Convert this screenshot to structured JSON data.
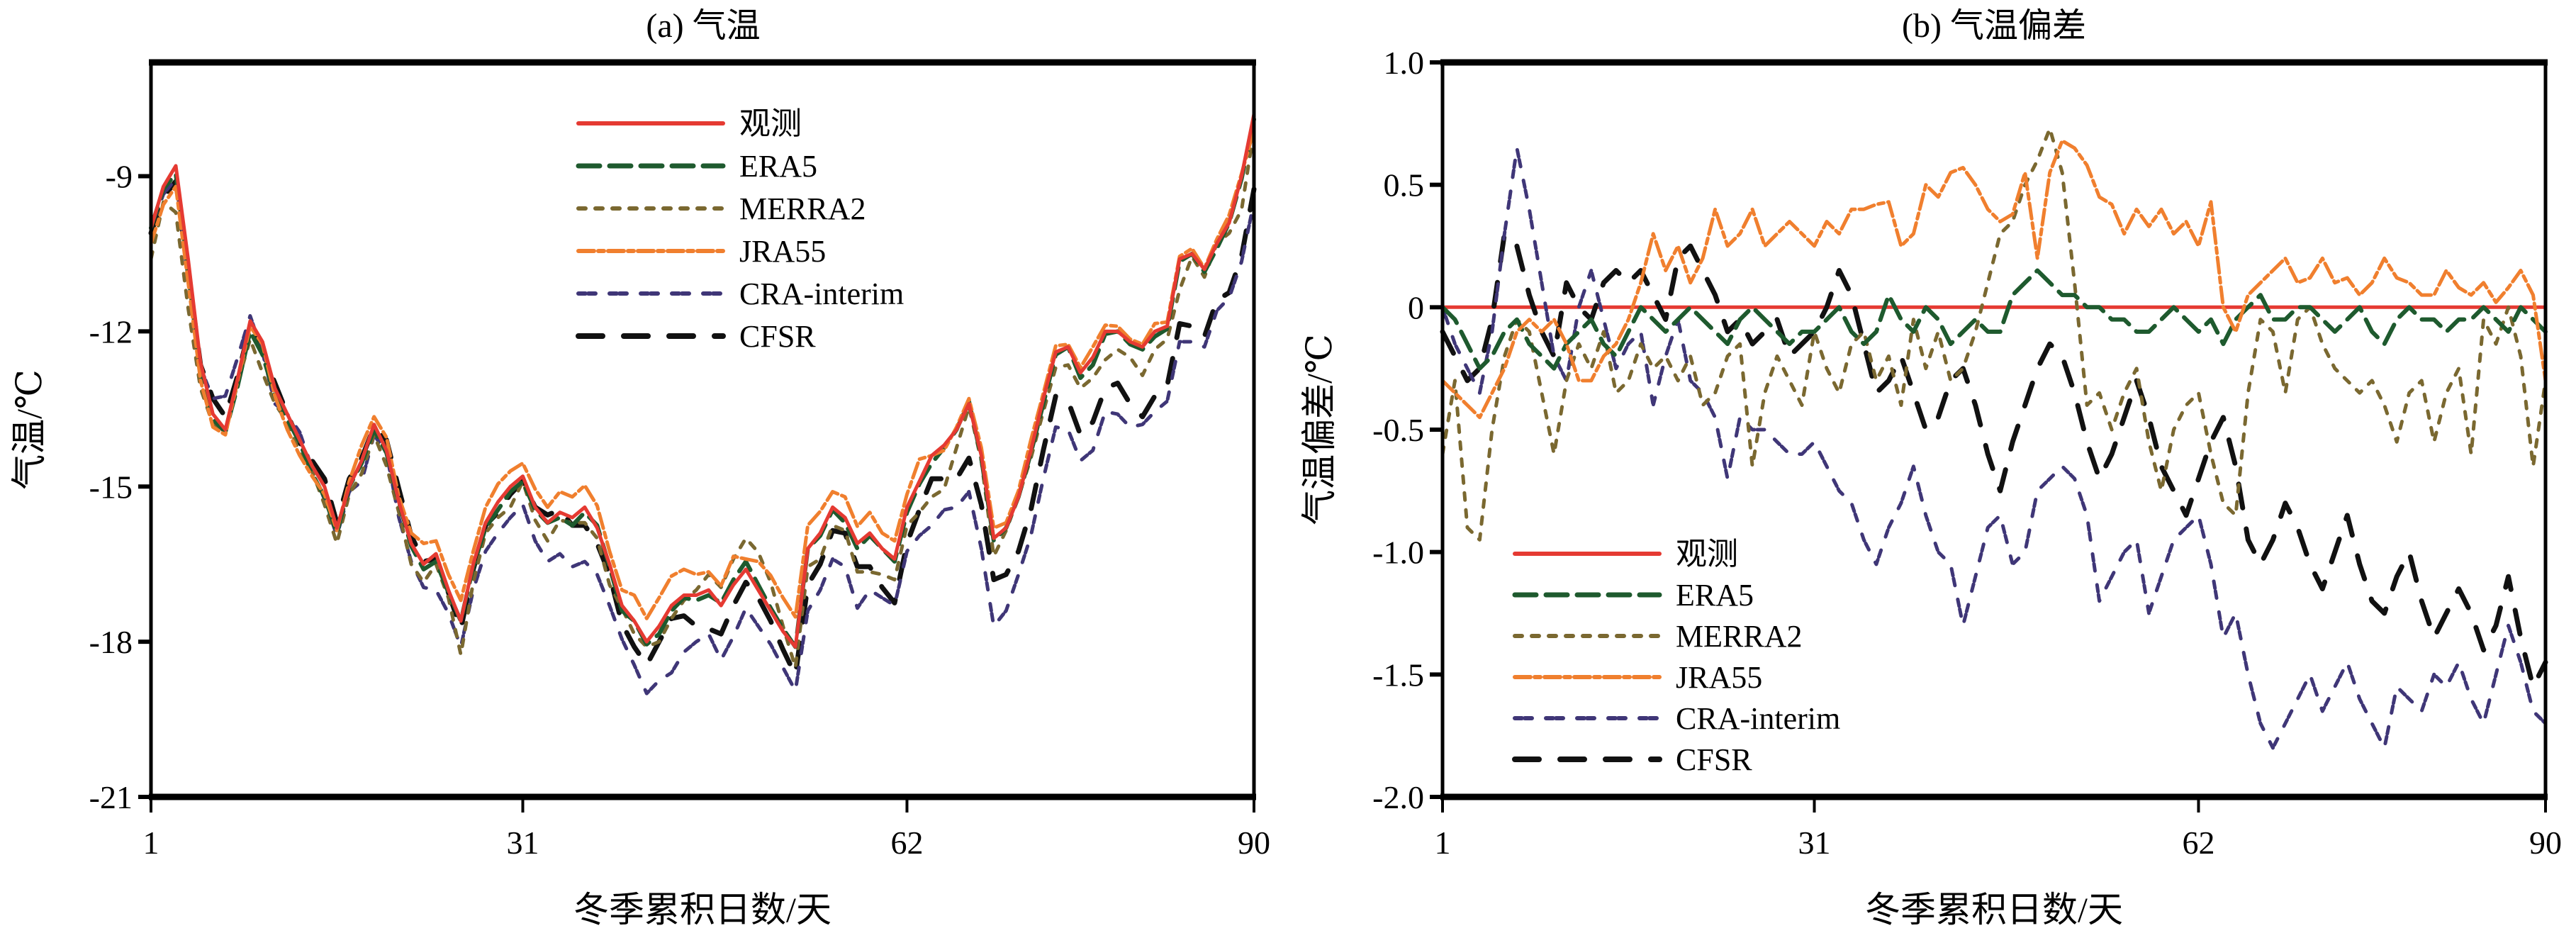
{
  "chart_data": [
    {
      "type": "line",
      "title": "(a) 气温",
      "xlabel": "冬季累积日数/天",
      "ylabel": "气温/℃",
      "xlim": [
        1,
        90
      ],
      "ylim": [
        -21,
        -6.8
      ],
      "xticks": [
        1,
        31,
        62,
        90
      ],
      "xtick_labels": [
        "1",
        "31",
        "62",
        "90"
      ],
      "yticks": [
        -21,
        -18,
        -15,
        -12,
        -9
      ],
      "ytick_labels": [
        "-21",
        "-18",
        "-15",
        "-12",
        "-9"
      ],
      "grid": false,
      "legend_position": "top-right",
      "x": "days 1-90",
      "series": [
        {
          "name": "观测",
          "color": "#e53a32",
          "dash": "solid",
          "values": [
            -10.0,
            -9.2,
            -8.8,
            -10.6,
            -12.6,
            -13.6,
            -13.9,
            -12.9,
            -11.8,
            -12.2,
            -13.1,
            -13.6,
            -14.1,
            -14.6,
            -15.0,
            -15.8,
            -15.0,
            -14.5,
            -13.8,
            -14.3,
            -15.3,
            -16.1,
            -16.5,
            -16.3,
            -17.0,
            -17.6,
            -16.5,
            -15.7,
            -15.3,
            -15.0,
            -14.8,
            -15.4,
            -15.7,
            -15.5,
            -15.6,
            -15.4,
            -15.8,
            -16.5,
            -17.3,
            -17.6,
            -18.0,
            -17.7,
            -17.3,
            -17.1,
            -17.1,
            -17.0,
            -17.3,
            -16.9,
            -16.6,
            -17.0,
            -17.4,
            -17.8,
            -18.1,
            -16.2,
            -15.9,
            -15.4,
            -15.6,
            -16.1,
            -15.9,
            -16.2,
            -16.4,
            -15.4,
            -14.9,
            -14.4,
            -14.2,
            -13.9,
            -13.4,
            -14.4,
            -16.0,
            -15.8,
            -15.2,
            -14.3,
            -13.3,
            -12.4,
            -12.3,
            -12.8,
            -12.5,
            -12.0,
            -12.0,
            -12.2,
            -12.3,
            -12.0,
            -11.9,
            -10.6,
            -10.5,
            -10.8,
            -10.3,
            -9.9,
            -9.0,
            -7.8
          ]
        },
        {
          "name": "ERA5",
          "color": "#1e5a2e",
          "dash": "long-dash"
        },
        {
          "name": "MERRA2",
          "color": "#7a6830",
          "dash": "dot"
        },
        {
          "name": "JRA55",
          "color": "#f07f2e",
          "dash": "dash-dot"
        },
        {
          "name": "CRA-interim",
          "color": "#3f3677",
          "dash": "double-dot"
        },
        {
          "name": "CFSR",
          "color": "#111111",
          "dash": "wide-dash"
        }
      ]
    },
    {
      "type": "line",
      "title": "(b) 气温偏差",
      "xlabel": "冬季累积日数/天",
      "ylabel": "气温偏差/℃",
      "xlim": [
        1,
        90
      ],
      "ylim": [
        -2.0,
        1.0
      ],
      "xticks": [
        1,
        31,
        62,
        90
      ],
      "xtick_labels": [
        "1",
        "31",
        "62",
        "90"
      ],
      "yticks": [
        -2.0,
        -1.5,
        -1.0,
        -0.5,
        0,
        0.5,
        1.0
      ],
      "ytick_labels": [
        "-2.0",
        "-1.5",
        "-1.0",
        "-0.5",
        "0",
        "0.5",
        "1.0"
      ],
      "grid": false,
      "legend_position": "bottom-left",
      "x": "days 1-90",
      "series": [
        {
          "name": "观测",
          "color": "#e53a32",
          "dash": "solid",
          "values": [
            0,
            0,
            0,
            0,
            0,
            0,
            0,
            0,
            0,
            0,
            0,
            0,
            0,
            0,
            0,
            0,
            0,
            0,
            0,
            0,
            0,
            0,
            0,
            0,
            0,
            0,
            0,
            0,
            0,
            0,
            0,
            0,
            0,
            0,
            0,
            0,
            0,
            0,
            0,
            0,
            0,
            0,
            0,
            0,
            0,
            0,
            0,
            0,
            0,
            0,
            0,
            0,
            0,
            0,
            0,
            0,
            0,
            0,
            0,
            0,
            0,
            0,
            0,
            0,
            0,
            0,
            0,
            0,
            0,
            0,
            0,
            0,
            0,
            0,
            0,
            0,
            0,
            0,
            0,
            0,
            0,
            0,
            0,
            0,
            0,
            0,
            0,
            0,
            0,
            0
          ]
        },
        {
          "name": "ERA5",
          "color": "#1e5a2e",
          "dash": "long-dash",
          "values": [
            0.0,
            -0.05,
            -0.15,
            -0.25,
            -0.2,
            -0.1,
            -0.05,
            -0.15,
            -0.2,
            -0.25,
            -0.15,
            -0.1,
            -0.05,
            -0.15,
            -0.2,
            -0.1,
            0.0,
            -0.05,
            -0.1,
            -0.05,
            0.0,
            -0.05,
            -0.1,
            -0.15,
            -0.05,
            0.0,
            -0.05,
            -0.1,
            -0.15,
            -0.1,
            -0.1,
            -0.05,
            0.0,
            -0.1,
            -0.15,
            -0.1,
            0.05,
            -0.05,
            -0.1,
            0.0,
            -0.05,
            -0.15,
            -0.1,
            -0.05,
            -0.1,
            -0.1,
            0.05,
            0.1,
            0.15,
            0.1,
            0.05,
            0.05,
            0.0,
            0.0,
            -0.05,
            -0.05,
            -0.1,
            -0.1,
            -0.05,
            0.0,
            -0.05,
            -0.1,
            -0.05,
            -0.15,
            -0.05,
            0.0,
            0.05,
            -0.05,
            -0.05,
            0.0,
            0.0,
            -0.05,
            -0.1,
            -0.05,
            0.0,
            -0.1,
            -0.15,
            -0.05,
            0.0,
            -0.05,
            -0.05,
            -0.1,
            -0.05,
            -0.05,
            0.0,
            -0.05,
            -0.1,
            0.0,
            -0.05,
            -0.1
          ]
        },
        {
          "name": "MERRA2",
          "color": "#7a6830",
          "dash": "dot",
          "values": [
            -0.6,
            -0.3,
            -0.9,
            -0.95,
            -0.5,
            -0.2,
            -0.05,
            -0.1,
            -0.35,
            -0.6,
            -0.3,
            -0.15,
            -0.25,
            -0.1,
            -0.35,
            -0.3,
            -0.15,
            -0.25,
            -0.2,
            -0.3,
            -0.2,
            -0.4,
            -0.35,
            -0.2,
            -0.15,
            -0.65,
            -0.35,
            -0.2,
            -0.3,
            -0.4,
            -0.1,
            -0.25,
            -0.35,
            -0.15,
            -0.1,
            -0.3,
            -0.2,
            -0.4,
            -0.05,
            -0.25,
            -0.1,
            -0.3,
            -0.25,
            -0.1,
            0.1,
            0.3,
            0.35,
            0.5,
            0.6,
            0.73,
            0.55,
            0.1,
            -0.4,
            -0.35,
            -0.5,
            -0.35,
            -0.25,
            -0.55,
            -0.75,
            -0.5,
            -0.4,
            -0.35,
            -0.6,
            -0.8,
            -0.85,
            -0.35,
            -0.05,
            -0.1,
            -0.35,
            -0.05,
            0.0,
            -0.15,
            -0.25,
            -0.3,
            -0.35,
            -0.3,
            -0.4,
            -0.55,
            -0.35,
            -0.3,
            -0.55,
            -0.35,
            -0.25,
            -0.6,
            -0.05,
            -0.15,
            0.0,
            -0.2,
            -0.65,
            -0.3
          ]
        },
        {
          "name": "JRA55",
          "color": "#f07f2e",
          "dash": "dash-dot",
          "values": [
            -0.3,
            -0.35,
            -0.4,
            -0.45,
            -0.35,
            -0.25,
            -0.1,
            -0.05,
            -0.1,
            -0.05,
            -0.15,
            -0.3,
            -0.3,
            -0.2,
            -0.15,
            -0.05,
            0.1,
            0.3,
            0.15,
            0.25,
            0.1,
            0.2,
            0.4,
            0.25,
            0.3,
            0.4,
            0.25,
            0.3,
            0.35,
            0.3,
            0.25,
            0.35,
            0.3,
            0.4,
            0.4,
            0.42,
            0.43,
            0.25,
            0.3,
            0.5,
            0.45,
            0.55,
            0.57,
            0.5,
            0.4,
            0.35,
            0.38,
            0.55,
            0.2,
            0.55,
            0.68,
            0.65,
            0.58,
            0.45,
            0.42,
            0.3,
            0.4,
            0.33,
            0.4,
            0.3,
            0.35,
            0.25,
            0.43,
            0.0,
            -0.1,
            0.05,
            0.1,
            0.15,
            0.2,
            0.1,
            0.12,
            0.2,
            0.1,
            0.12,
            0.05,
            0.1,
            0.2,
            0.12,
            0.1,
            0.05,
            0.05,
            0.15,
            0.08,
            0.05,
            0.1,
            0.02,
            0.08,
            0.15,
            0.05,
            -0.3
          ]
        },
        {
          "name": "CRA-interim",
          "color": "#3f3677",
          "dash": "double-dot",
          "values": [
            0.0,
            -0.15,
            -0.25,
            -0.35,
            -0.1,
            0.3,
            0.65,
            0.4,
            0.1,
            -0.2,
            -0.3,
            0.0,
            0.15,
            -0.05,
            -0.25,
            -0.15,
            -0.1,
            -0.4,
            -0.2,
            -0.05,
            -0.3,
            -0.35,
            -0.45,
            -0.7,
            -0.45,
            -0.5,
            -0.5,
            -0.55,
            -0.6,
            -0.6,
            -0.55,
            -0.65,
            -0.75,
            -0.8,
            -0.95,
            -1.05,
            -0.9,
            -0.8,
            -0.65,
            -0.85,
            -1.0,
            -1.05,
            -1.3,
            -1.1,
            -0.9,
            -0.85,
            -1.05,
            -1.0,
            -0.75,
            -0.7,
            -0.65,
            -0.7,
            -0.85,
            -1.2,
            -1.1,
            -1.0,
            -0.95,
            -1.25,
            -1.1,
            -0.95,
            -0.9,
            -0.85,
            -1.05,
            -1.35,
            -1.25,
            -1.5,
            -1.7,
            -1.8,
            -1.7,
            -1.6,
            -1.5,
            -1.65,
            -1.55,
            -1.45,
            -1.6,
            -1.7,
            -1.8,
            -1.55,
            -1.6,
            -1.65,
            -1.5,
            -1.55,
            -1.45,
            -1.6,
            -1.7,
            -1.5,
            -1.3,
            -1.45,
            -1.65,
            -1.7
          ]
        },
        {
          "name": "CFSR",
          "color": "#111111",
          "dash": "wide-dash",
          "values": [
            -0.1,
            -0.2,
            -0.3,
            -0.25,
            -0.05,
            0.3,
            0.25,
            0.05,
            -0.1,
            -0.2,
            0.1,
            0.0,
            -0.05,
            0.1,
            0.15,
            0.1,
            0.15,
            0.05,
            -0.05,
            0.2,
            0.25,
            0.15,
            0.05,
            -0.1,
            -0.05,
            -0.15,
            -0.1,
            -0.05,
            -0.2,
            -0.15,
            -0.1,
            0.0,
            0.15,
            0.05,
            -0.15,
            -0.35,
            -0.3,
            -0.2,
            -0.35,
            -0.5,
            -0.45,
            -0.3,
            -0.25,
            -0.4,
            -0.6,
            -0.75,
            -0.55,
            -0.4,
            -0.25,
            -0.15,
            -0.2,
            -0.35,
            -0.55,
            -0.7,
            -0.6,
            -0.45,
            -0.3,
            -0.45,
            -0.65,
            -0.75,
            -0.85,
            -0.7,
            -0.55,
            -0.45,
            -0.65,
            -0.95,
            -1.05,
            -0.95,
            -0.8,
            -0.9,
            -1.05,
            -1.15,
            -1.0,
            -0.85,
            -1.05,
            -1.2,
            -1.25,
            -1.1,
            -1.0,
            -1.2,
            -1.35,
            -1.25,
            -1.15,
            -1.25,
            -1.4,
            -1.3,
            -1.1,
            -1.35,
            -1.55,
            -1.45
          ]
        }
      ]
    }
  ]
}
